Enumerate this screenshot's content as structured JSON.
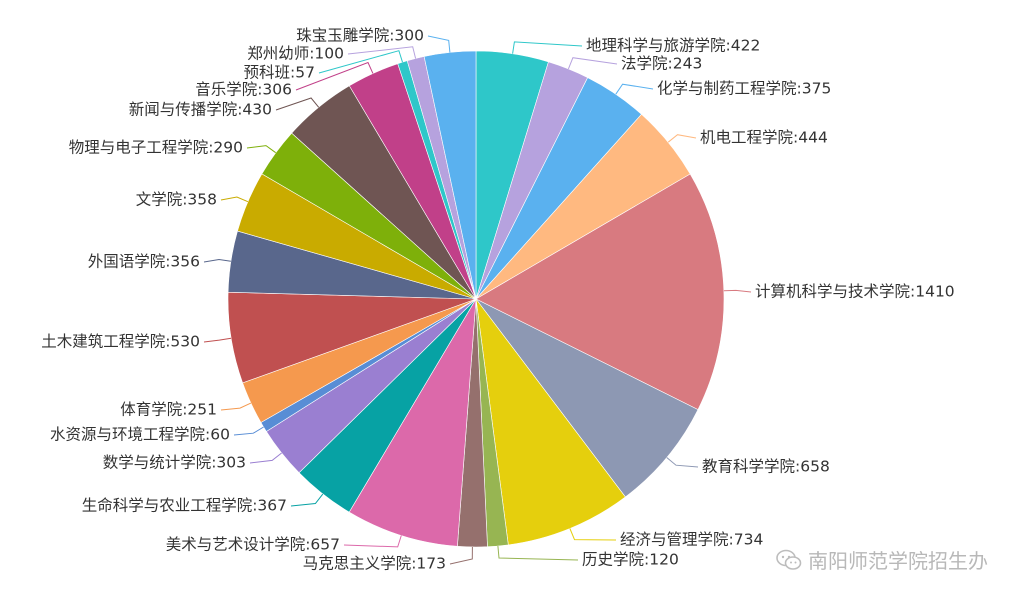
{
  "chart_data": {
    "type": "pie",
    "start_angle_deg": 90,
    "direction": "clockwise",
    "slices": [
      {
        "label": "地理科学与旅游学院",
        "value": 422,
        "color": "#2ec7c9"
      },
      {
        "label": "法学院",
        "value": 243,
        "color": "#b6a2de"
      },
      {
        "label": "化学与制药工程学院",
        "value": 375,
        "color": "#5ab1ef"
      },
      {
        "label": "机电工程学院",
        "value": 444,
        "color": "#ffb980"
      },
      {
        "label": "计算机科学与技术学院",
        "value": 1410,
        "color": "#d87a80"
      },
      {
        "label": "教育科学学院",
        "value": 658,
        "color": "#8d98b3"
      },
      {
        "label": "经济与管理学院",
        "value": 734,
        "color": "#e5cf0d"
      },
      {
        "label": "历史学院",
        "value": 120,
        "color": "#97b552"
      },
      {
        "label": "马克思主义学院",
        "value": 173,
        "color": "#95706d"
      },
      {
        "label": "美术与艺术设计学院",
        "value": 657,
        "color": "#dc69aa"
      },
      {
        "label": "生命科学与农业工程学院",
        "value": 367,
        "color": "#07a2a4"
      },
      {
        "label": "数学与统计学院",
        "value": 303,
        "color": "#9a7fd1"
      },
      {
        "label": "水资源与环境工程学院",
        "value": 60,
        "color": "#588dd5"
      },
      {
        "label": "体育学院",
        "value": 251,
        "color": "#f5994e"
      },
      {
        "label": "土木建筑工程学院",
        "value": 530,
        "color": "#c05050"
      },
      {
        "label": "外国语学院",
        "value": 356,
        "color": "#59678c"
      },
      {
        "label": "文学院",
        "value": 358,
        "color": "#c9ab00"
      },
      {
        "label": "物理与电子工程学院",
        "value": 290,
        "color": "#7eb00a"
      },
      {
        "label": "新闻与传播学院",
        "value": 430,
        "color": "#6f5553"
      },
      {
        "label": "音乐学院",
        "value": 306,
        "color": "#c14089"
      },
      {
        "label": "预科班",
        "value": 57,
        "color": "#2ec7c9"
      },
      {
        "label": "郑州幼师",
        "value": 100,
        "color": "#b6a2de"
      },
      {
        "label": "珠宝玉雕学院",
        "value": 300,
        "color": "#5ab1ef"
      }
    ]
  },
  "watermark": {
    "text": "南阳师范学院招生办",
    "icon": "wechat-icon"
  }
}
